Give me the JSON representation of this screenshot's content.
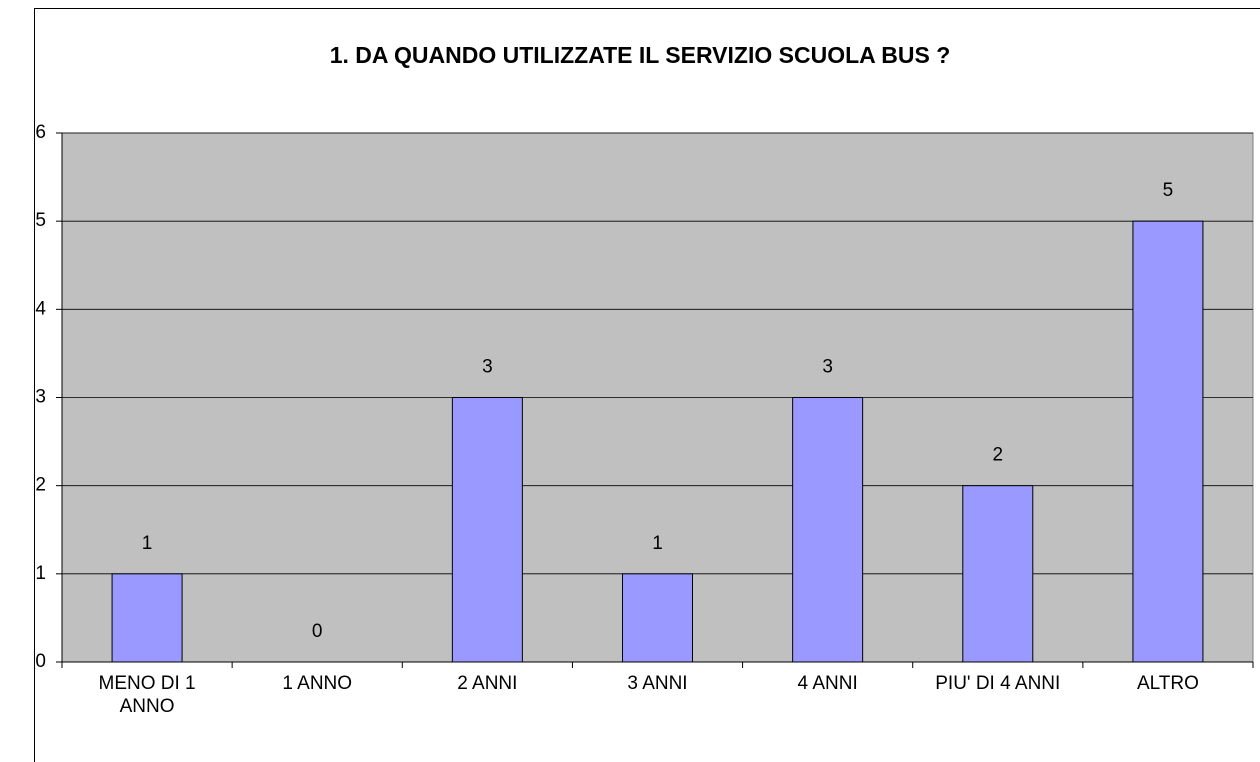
{
  "chart_data": {
    "type": "bar",
    "title": "1. DA QUANDO UTILIZZATE IL SERVIZIO SCUOLA BUS ?",
    "categories": [
      "MENO DI 1 ANNO",
      "1 ANNO",
      "2 ANNI",
      "3 ANNI",
      "4 ANNI",
      "PIU' DI 4 ANNI",
      "ALTRO"
    ],
    "values": [
      1,
      0,
      3,
      1,
      3,
      2,
      5
    ],
    "color": "#9999ff",
    "ylim": [
      0,
      6
    ],
    "yticks": [
      0,
      1,
      2,
      3,
      4,
      5,
      6
    ],
    "grid": true
  }
}
